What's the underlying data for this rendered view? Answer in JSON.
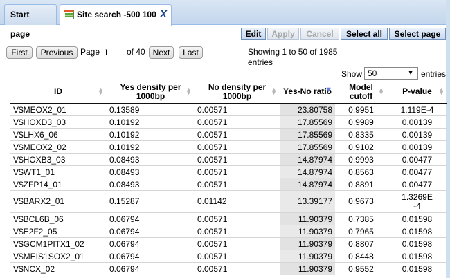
{
  "tabs": [
    {
      "label": "Start page"
    },
    {
      "label": "Site search -500 100",
      "close": "X"
    }
  ],
  "toolbar": {
    "edit": "Edit",
    "apply": "Apply",
    "cancel": "Cancel",
    "select_all": "Select all",
    "select_page": "Select page"
  },
  "pager": {
    "first": "First",
    "previous": "Previous",
    "page_label": "Page",
    "page_value": "1",
    "of_label": "of 40",
    "next": "Next",
    "last": "Last",
    "showing": "Showing 1 to 50 of 1985 entries",
    "show_label": "Show",
    "show_value": "50",
    "entries_label": "entries"
  },
  "table": {
    "columns": [
      "ID",
      "Yes density per 1000bp",
      "No density per 1000bp",
      "Yes-No ratio",
      "Model cutoff",
      "P-value"
    ],
    "rows": [
      [
        "V$MEOX2_01",
        "0.13589",
        "0.00571",
        "23.80758",
        "0.9951",
        "1.119E-4"
      ],
      [
        "V$HOXD3_03",
        "0.10192",
        "0.00571",
        "17.85569",
        "0.9989",
        "0.00139"
      ],
      [
        "V$LHX6_06",
        "0.10192",
        "0.00571",
        "17.85569",
        "0.8335",
        "0.00139"
      ],
      [
        "V$MEOX2_02",
        "0.10192",
        "0.00571",
        "17.85569",
        "0.9102",
        "0.00139"
      ],
      [
        "V$HOXB3_03",
        "0.08493",
        "0.00571",
        "14.87974",
        "0.9993",
        "0.00477"
      ],
      [
        "V$WT1_01",
        "0.08493",
        "0.00571",
        "14.87974",
        "0.8563",
        "0.00477"
      ],
      [
        "V$ZFP14_01",
        "0.08493",
        "0.00571",
        "14.87974",
        "0.8891",
        "0.00477"
      ],
      [
        "V$BARX2_01",
        "0.15287",
        "0.01142",
        "13.39177",
        "0.9673",
        "1.3269E-4"
      ],
      [
        "V$BCL6B_06",
        "0.06794",
        "0.00571",
        "11.90379",
        "0.7385",
        "0.01598"
      ],
      [
        "V$E2F2_05",
        "0.06794",
        "0.00571",
        "11.90379",
        "0.7965",
        "0.01598"
      ],
      [
        "V$GCM1PITX1_02",
        "0.06794",
        "0.00571",
        "11.90379",
        "0.8807",
        "0.01598"
      ],
      [
        "V$MEIS1SOX2_01",
        "0.06794",
        "0.00571",
        "11.90379",
        "0.8448",
        "0.01598"
      ],
      [
        "V$NCX_02",
        "0.06794",
        "0.00571",
        "11.90379",
        "0.9552",
        "0.01598"
      ]
    ]
  }
}
